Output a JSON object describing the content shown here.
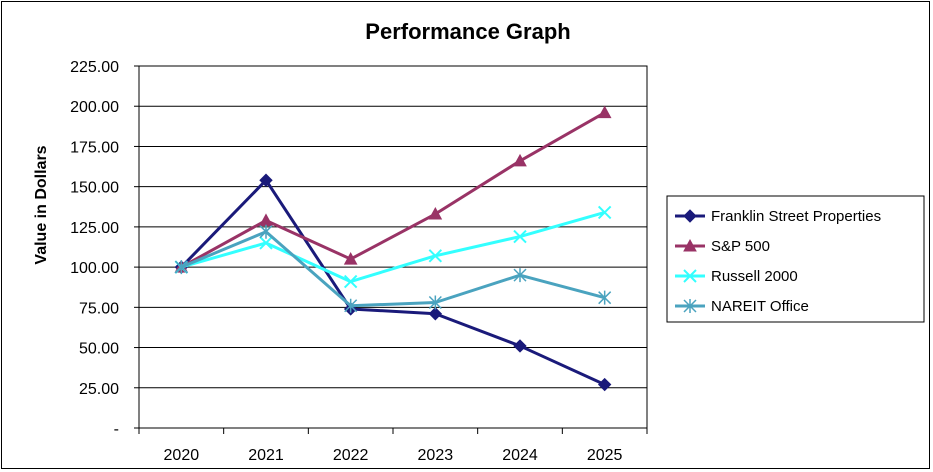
{
  "chart_data": {
    "type": "line",
    "title": "Performance Graph",
    "xlabel": "",
    "ylabel": "Value in Dollars",
    "categories": [
      "2020",
      "2021",
      "2022",
      "2023",
      "2024",
      "2025"
    ],
    "ylim": [
      0,
      225
    ],
    "yticks": [
      0,
      25,
      50,
      75,
      100,
      125,
      150,
      175,
      200,
      225
    ],
    "ytick_labels": [
      "-",
      "25.00",
      "50.00",
      "75.00",
      "100.00",
      "125.00",
      "150.00",
      "175.00",
      "200.00",
      "225.00"
    ],
    "grid": "horizontal",
    "legend_position": "right",
    "series": [
      {
        "name": "Franklin Street Properties",
        "values": [
          100,
          154,
          74,
          71,
          51,
          27
        ],
        "color": "#1a1a7a",
        "marker": "diamond"
      },
      {
        "name": "S&P 500",
        "values": [
          100,
          129,
          105,
          133,
          166,
          196
        ],
        "color": "#993366",
        "marker": "triangle"
      },
      {
        "name": "Russell 2000",
        "values": [
          100,
          115,
          91,
          107,
          119,
          134
        ],
        "color": "#33ffff",
        "marker": "x"
      },
      {
        "name": "NAREIT Office",
        "values": [
          100,
          122,
          76,
          78,
          95,
          81
        ],
        "color": "#4aa3bf",
        "marker": "star"
      }
    ]
  }
}
